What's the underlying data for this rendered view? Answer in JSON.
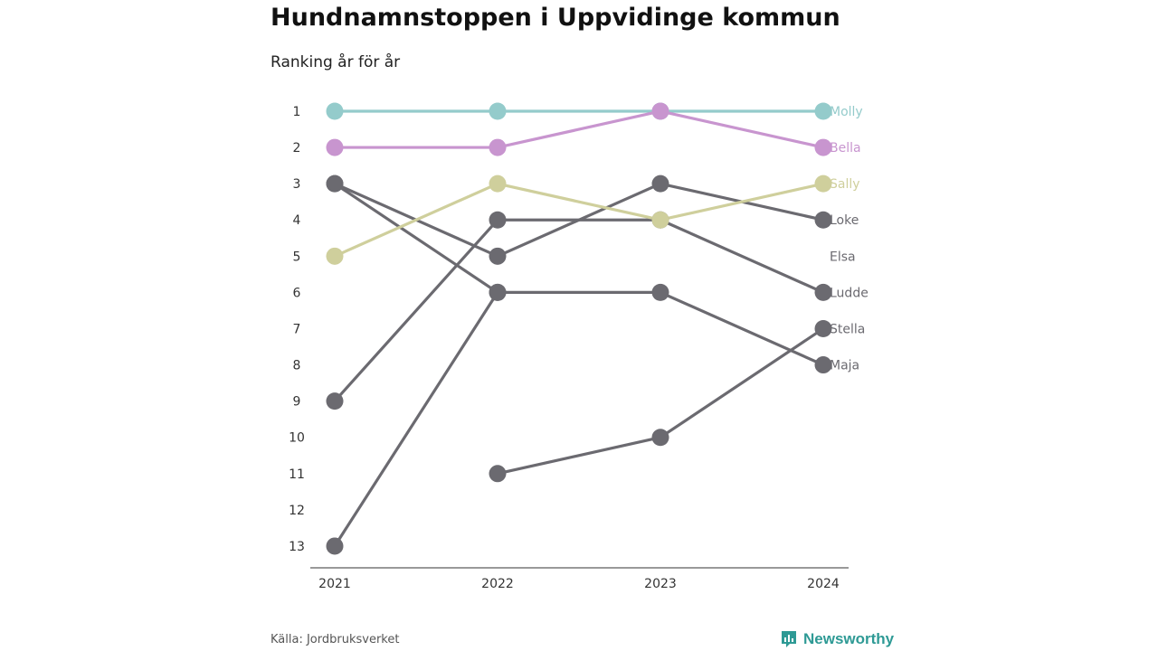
{
  "header": {
    "title": "Hundnamnstoppen i Uppvidinge kommun",
    "subtitle": "Ranking år för år"
  },
  "footer": {
    "source": "Källa: Jordbruksverket",
    "brand": "Newsworthy",
    "brand_icon": "newsworthy-logo-icon"
  },
  "colors": {
    "Molly": "#94cbcb",
    "Bella": "#c895cf",
    "Sally": "#cfcf9c",
    "default": "#6b6a70"
  },
  "chart_data": {
    "type": "line",
    "title": "Hundnamnstoppen i Uppvidinge kommun",
    "subtitle": "Ranking år för år",
    "x": [
      "2021",
      "2022",
      "2023",
      "2024"
    ],
    "y_ticks": [
      "1",
      "2",
      "3",
      "4",
      "5",
      "6",
      "7",
      "8",
      "9",
      "10",
      "11",
      "12",
      "13"
    ],
    "ylim": [
      1,
      13
    ],
    "y_inverted": true,
    "grid": false,
    "series": [
      {
        "name": "Molly",
        "values": [
          1,
          1,
          1,
          1
        ]
      },
      {
        "name": "Bella",
        "values": [
          2,
          2,
          1,
          2
        ]
      },
      {
        "name": "Sally",
        "values": [
          5,
          3,
          4,
          3
        ]
      },
      {
        "name": "Loke",
        "values": [
          3,
          5,
          3,
          4
        ]
      },
      {
        "name": "Elsa",
        "values": [
          null,
          null,
          null,
          null
        ]
      },
      {
        "name": "Ludde",
        "values": [
          9,
          4,
          4,
          6
        ]
      },
      {
        "name": "Stella",
        "values": [
          null,
          11,
          10,
          7
        ]
      },
      {
        "name": "Maja",
        "values": [
          13,
          6,
          6,
          8
        ]
      }
    ],
    "extra_lines": [
      {
        "values": [
          3,
          6,
          null,
          null
        ]
      }
    ]
  }
}
